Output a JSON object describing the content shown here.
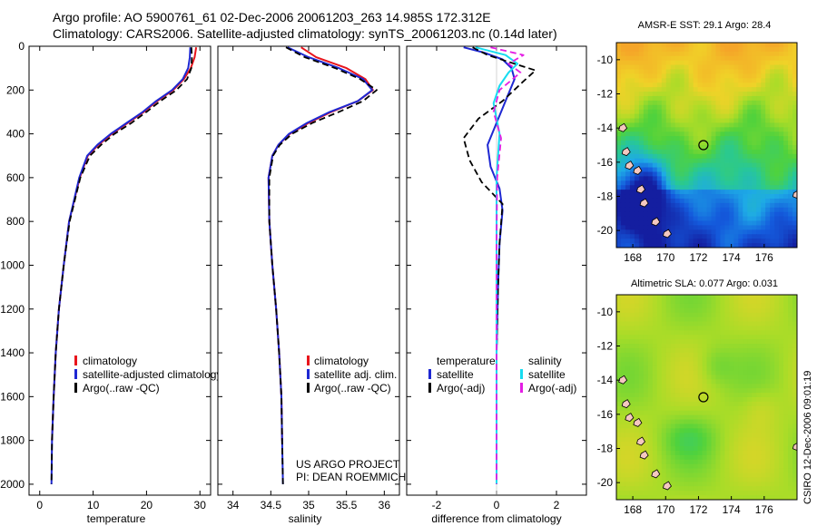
{
  "header": {
    "line1": "Argo profile: AO 5900761_61 02-Dec-2006 20061203_263 14.985S 172.312E",
    "line2": "Climatology: CARS2006. Satellite-adjusted climatology: synTS_20061203.nc (0.14d later)"
  },
  "colors": {
    "climatology": "#e8141c",
    "satellite": "#1e28d2",
    "argo": "#000000",
    "sal_satellite": "#17dcf0",
    "sal_argo": "#e41ee4"
  },
  "chart_data": [
    {
      "type": "line",
      "id": "temperature",
      "xlabel": "temperature",
      "xlim": [
        -2,
        32
      ],
      "ylim": [
        2050,
        0
      ],
      "xticks": [
        "0",
        "10",
        "20",
        "30"
      ],
      "xtick_values": [
        0,
        10,
        20,
        30
      ],
      "yticks": [
        "0",
        "200",
        "400",
        "600",
        "800",
        "1000",
        "1200",
        "1400",
        "1600",
        "1800",
        "2000"
      ],
      "ytick_values": [
        0,
        200,
        400,
        600,
        800,
        1000,
        1200,
        1400,
        1600,
        1800,
        2000
      ],
      "series": [
        {
          "name": "climatology",
          "style": "solid",
          "color_key": "climatology",
          "x": [
            29.3,
            29.0,
            28.3,
            27.0,
            25.0,
            22.0,
            19.5,
            16.5,
            13.5,
            11.0,
            9.0,
            7.5,
            5.5,
            4.5,
            3.6,
            3.0,
            2.6,
            2.3
          ],
          "y": [
            5,
            50,
            100,
            150,
            200,
            250,
            300,
            350,
            400,
            450,
            500,
            600,
            800,
            1000,
            1200,
            1400,
            1600,
            1800
          ]
        },
        {
          "name": "satellite-adjusted climatology",
          "style": "solid",
          "color_key": "satellite",
          "x": [
            28.2,
            28.1,
            27.8,
            26.8,
            24.8,
            21.8,
            19.3,
            16.3,
            13.3,
            10.8,
            8.9,
            7.4,
            5.5,
            4.5,
            3.6,
            3.0,
            2.6,
            2.3,
            2.2
          ],
          "y": [
            5,
            50,
            100,
            150,
            200,
            250,
            300,
            350,
            400,
            450,
            500,
            600,
            800,
            1000,
            1200,
            1400,
            1600,
            1800,
            2000
          ]
        },
        {
          "name": "Argo(..raw -QC)",
          "style": "dashed",
          "color_key": "argo",
          "x": [
            28.4,
            28.5,
            28.4,
            27.6,
            25.6,
            22.6,
            20.0,
            17.2,
            14.0,
            11.5,
            9.4,
            7.6,
            5.6,
            4.5,
            3.6,
            3.0,
            2.6,
            2.3,
            2.2
          ],
          "y": [
            5,
            50,
            100,
            150,
            200,
            250,
            300,
            350,
            400,
            450,
            500,
            600,
            800,
            1000,
            1200,
            1400,
            1600,
            1800,
            2000
          ]
        }
      ],
      "legend": [
        "climatology",
        "satellite-adjusted climatology",
        "Argo(..raw -QC)"
      ]
    },
    {
      "type": "line",
      "id": "salinity",
      "xlabel": "salinity",
      "xlim": [
        33.8,
        36.2
      ],
      "ylim": [
        2050,
        0
      ],
      "xticks": [
        "34",
        "34.5",
        "35",
        "35.5",
        "36"
      ],
      "xtick_values": [
        34,
        34.5,
        35,
        35.5,
        36
      ],
      "series": [
        {
          "name": "climatology",
          "style": "solid",
          "color_key": "climatology",
          "x": [
            34.9,
            35.1,
            35.5,
            35.75,
            35.85,
            35.65,
            35.3,
            35.0,
            34.75,
            34.6,
            34.52,
            34.47,
            34.48,
            34.52,
            34.57,
            34.61,
            34.64,
            34.65
          ],
          "y": [
            5,
            50,
            100,
            150,
            200,
            250,
            300,
            350,
            400,
            450,
            500,
            600,
            800,
            1000,
            1200,
            1400,
            1600,
            1800
          ]
        },
        {
          "name": "satellite adj. clim.",
          "style": "solid",
          "color_key": "satellite",
          "x": [
            34.72,
            35.0,
            35.4,
            35.72,
            35.84,
            35.65,
            35.28,
            34.98,
            34.74,
            34.6,
            34.52,
            34.47,
            34.48,
            34.52,
            34.57,
            34.61,
            34.64,
            34.65,
            34.66
          ],
          "y": [
            5,
            50,
            100,
            150,
            200,
            250,
            300,
            350,
            400,
            450,
            500,
            600,
            800,
            1000,
            1200,
            1400,
            1600,
            1800,
            2000
          ]
        },
        {
          "name": "Argo(..raw -QC)",
          "style": "dashed",
          "color_key": "argo",
          "x": [
            34.7,
            34.95,
            35.35,
            35.68,
            35.9,
            35.72,
            35.4,
            35.05,
            34.78,
            34.62,
            34.53,
            34.48,
            34.48,
            34.52,
            34.57,
            34.61,
            34.64,
            34.65,
            34.66
          ],
          "y": [
            5,
            50,
            100,
            150,
            200,
            250,
            300,
            350,
            400,
            450,
            500,
            600,
            800,
            1000,
            1200,
            1400,
            1600,
            1800,
            2000
          ]
        }
      ],
      "legend": [
        "climatology",
        "satellite adj. clim.",
        "Argo(..raw -QC)"
      ],
      "annotation": [
        "US ARGO PROJECT",
        "PI: DEAN ROEMMICH"
      ]
    },
    {
      "type": "line",
      "id": "difference",
      "xlabel": "difference from climatology",
      "xlim": [
        -3,
        3
      ],
      "ylim": [
        2050,
        0
      ],
      "xticks": [
        "-2",
        "0",
        "2"
      ],
      "xtick_values": [
        -2,
        0,
        2
      ],
      "series": [
        {
          "name": "temperature satellite",
          "style": "solid",
          "color_key": "satellite",
          "x": [
            -1.1,
            -0.4,
            0.2,
            0.5,
            0.6,
            0.3,
            0.0,
            -0.3,
            -0.2,
            0.1,
            0.2,
            0.1,
            0.05,
            0.0,
            0.0,
            0.0,
            0.0
          ],
          "y": [
            5,
            30,
            60,
            100,
            150,
            250,
            350,
            450,
            550,
            650,
            750,
            900,
            1100,
            1400,
            1600,
            1800,
            2000
          ]
        },
        {
          "name": "temperature Argo(-adj)",
          "style": "dashed",
          "color_key": "argo",
          "x": [
            -0.8,
            -0.3,
            0.6,
            1.3,
            0.9,
            0.2,
            -0.6,
            -1.1,
            -0.9,
            -0.5,
            0.2,
            0.1,
            0.05,
            0.0,
            0.0,
            0.0,
            0.0
          ],
          "y": [
            5,
            40,
            80,
            110,
            160,
            250,
            330,
            420,
            520,
            620,
            720,
            900,
            1100,
            1400,
            1600,
            1800,
            2000
          ]
        },
        {
          "name": "salinity satellite",
          "style": "solid",
          "color_key": "sal_satellite",
          "x": [
            -0.7,
            0.3,
            0.7,
            0.4,
            0.1,
            -0.1,
            0.1,
            0.0,
            0.0,
            0.0,
            0.0,
            0.0
          ],
          "y": [
            5,
            40,
            80,
            120,
            180,
            260,
            400,
            600,
            900,
            1200,
            1600,
            2000
          ]
        },
        {
          "name": "salinity Argo(-adj)",
          "style": "dashed",
          "color_key": "sal_argo",
          "x": [
            -0.2,
            0.9,
            0.4,
            0.8,
            0.1,
            -0.1,
            0.15,
            0.02,
            0.0,
            0.0,
            0.0,
            0.0
          ],
          "y": [
            5,
            40,
            80,
            120,
            200,
            300,
            420,
            600,
            900,
            1200,
            1600,
            2000
          ]
        }
      ],
      "legend_columns": [
        {
          "header": "temperature",
          "entries": [
            "satellite",
            "Argo(-adj)"
          ]
        },
        {
          "header": "salinity",
          "entries": [
            "satellite",
            "Argo(-adj)"
          ]
        }
      ]
    },
    {
      "type": "heatmap",
      "id": "sst_map",
      "title": "AMSR-E SST: 29.1  Argo: 28.4",
      "xlim": [
        167,
        178
      ],
      "ylim": [
        -21,
        -9
      ],
      "xticks": [
        "168",
        "170",
        "172",
        "174",
        "176"
      ],
      "xtick_values": [
        168,
        170,
        172,
        174,
        176
      ],
      "yticks": [
        "-10",
        "-12",
        "-14",
        "-16",
        "-18",
        "-20"
      ],
      "ytick_values": [
        -10,
        -12,
        -14,
        -16,
        -18,
        -20
      ],
      "marker": {
        "lon": 172.3,
        "lat": -15.0
      }
    },
    {
      "type": "heatmap",
      "id": "sla_map",
      "title": "Altimetric SLA: 0.077  Argo: 0.031",
      "xlim": [
        167,
        178
      ],
      "ylim": [
        -21,
        -9
      ],
      "xticks": [
        "168",
        "170",
        "172",
        "174",
        "176"
      ],
      "xtick_values": [
        168,
        170,
        172,
        174,
        176
      ],
      "yticks": [
        "-10",
        "-12",
        "-14",
        "-16",
        "-18",
        "-20"
      ],
      "ytick_values": [
        -10,
        -12,
        -14,
        -16,
        -18,
        -20
      ],
      "marker": {
        "lon": 172.3,
        "lat": -15.0
      }
    }
  ],
  "footer": {
    "stamp": "CSIRO 12-Dec-2006 09:01:19"
  }
}
